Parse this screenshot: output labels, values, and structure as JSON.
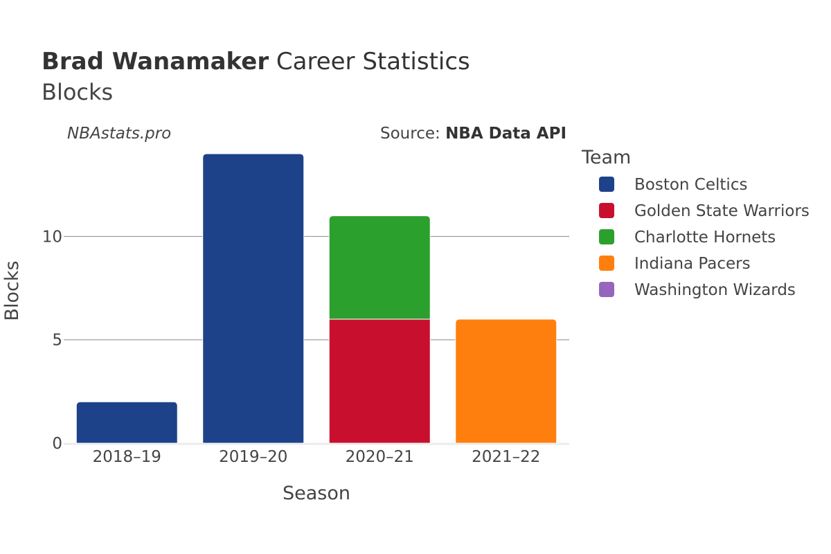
{
  "title": {
    "player": "Brad Wanamaker",
    "rest": "Career Statistics",
    "subtitle": "Blocks"
  },
  "watermark": "NBAstats.pro",
  "source": {
    "label": "Source: ",
    "value": "NBA Data API"
  },
  "legend": {
    "title": "Team",
    "items": [
      {
        "name": "Boston Celtics",
        "color": "#1d4289"
      },
      {
        "name": "Golden State Warriors",
        "color": "#c8102e"
      },
      {
        "name": "Charlotte Hornets",
        "color": "#2ca02c"
      },
      {
        "name": "Indiana Pacers",
        "color": "#ff7f0e"
      },
      {
        "name": "Washington Wizards",
        "color": "#9467bd"
      }
    ]
  },
  "chart_data": {
    "type": "bar",
    "stacked": true,
    "xlabel": "Season",
    "ylabel": "Blocks",
    "categories": [
      "2018–19",
      "2019–20",
      "2020–21",
      "2021–22"
    ],
    "ylim": [
      0,
      14
    ],
    "yticks": [
      0,
      5,
      10
    ],
    "grid": true,
    "legend_position": "right",
    "series": [
      {
        "name": "Boston Celtics",
        "color": "#1d4289",
        "values": [
          2,
          14,
          0,
          0
        ]
      },
      {
        "name": "Golden State Warriors",
        "color": "#c8102e",
        "values": [
          0,
          0,
          6,
          0
        ]
      },
      {
        "name": "Charlotte Hornets",
        "color": "#2ca02c",
        "values": [
          0,
          0,
          5,
          0
        ]
      },
      {
        "name": "Indiana Pacers",
        "color": "#ff7f0e",
        "values": [
          0,
          0,
          0,
          6
        ]
      },
      {
        "name": "Washington Wizards",
        "color": "#9467bd",
        "values": [
          0,
          0,
          0,
          0
        ]
      }
    ]
  }
}
